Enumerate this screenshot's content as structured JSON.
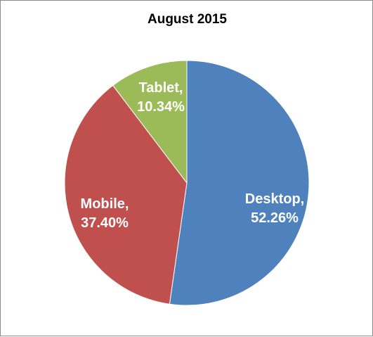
{
  "chart_data": {
    "type": "pie",
    "title": "August 2015",
    "slices": [
      {
        "label": "Desktop",
        "value": 52.26,
        "display": "52.26%",
        "color": "#4F81BD"
      },
      {
        "label": "Mobile",
        "value": 37.4,
        "display": "37.40%",
        "color": "#C0504D"
      },
      {
        "label": "Tablet",
        "value": 10.34,
        "display": "10.34%",
        "color": "#9BBB59"
      }
    ],
    "start_angle_deg": 0,
    "direction": "clockwise",
    "legend": "none",
    "data_labels": "inside"
  }
}
